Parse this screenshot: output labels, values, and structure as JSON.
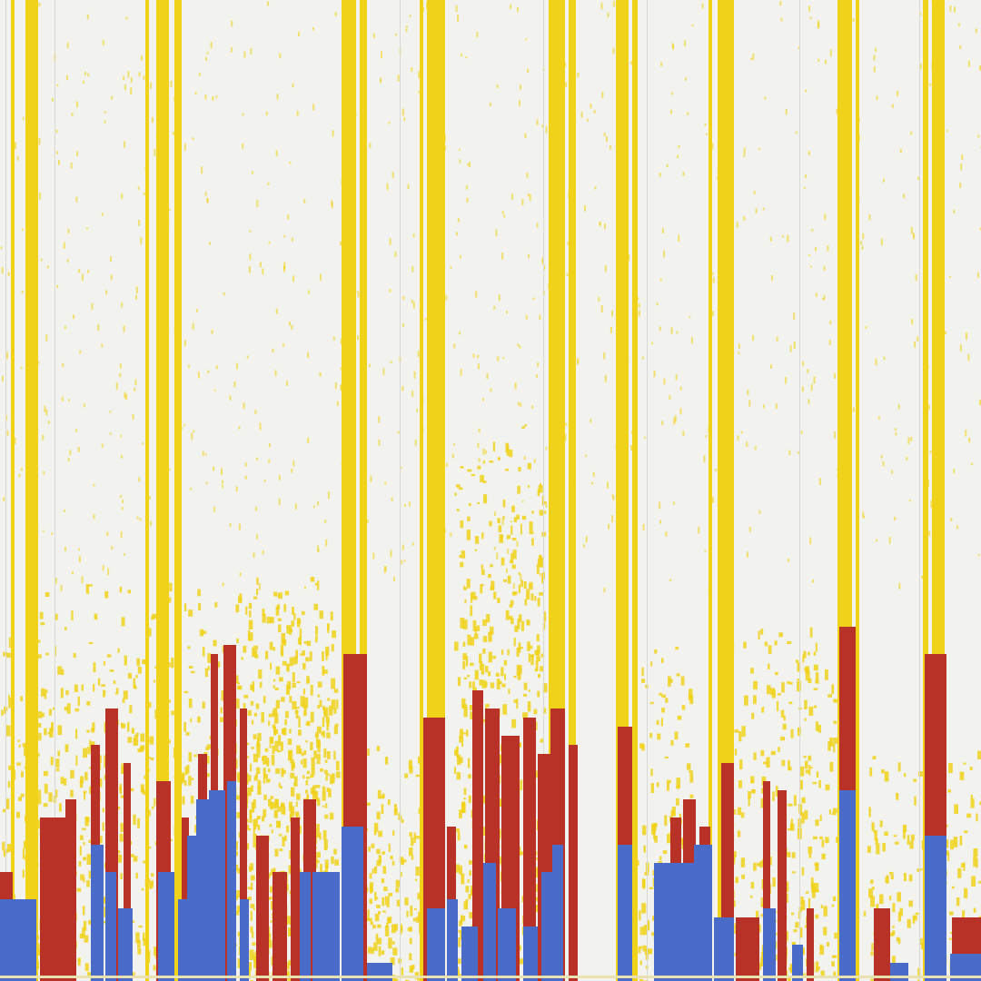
{
  "artwork": {
    "background_color": "#f2f2ee",
    "palette": {
      "yellow": "#f0d21a",
      "red": "#b83228",
      "blue": "#4a6cc8",
      "gray": "#d8d8d4"
    },
    "seed": 20240611
  }
}
